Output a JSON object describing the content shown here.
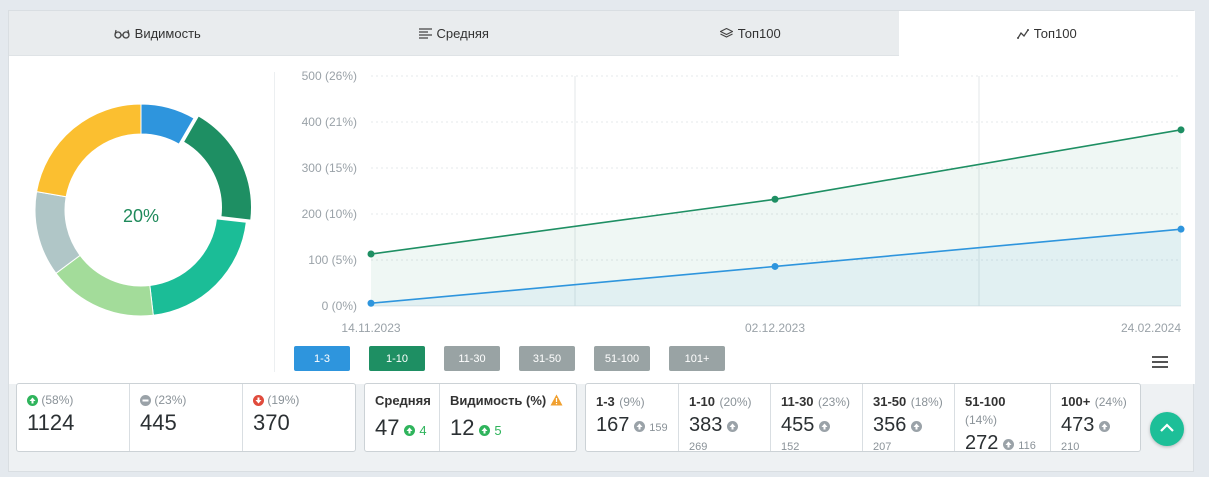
{
  "tabs": [
    {
      "label": "Видимость",
      "icon": "glasses-icon",
      "active": false
    },
    {
      "label": "Средняя",
      "icon": "lines-icon",
      "active": false
    },
    {
      "label": "Топ100",
      "icon": "layers-icon",
      "active": false
    },
    {
      "label": "Топ100",
      "icon": "chart-line-icon",
      "active": true
    }
  ],
  "donut": {
    "center_label": "20%",
    "segments": [
      {
        "name": "1-3",
        "value": 9,
        "color": "#2e95dd"
      },
      {
        "name": "1-10",
        "value": 20,
        "color": "#1e8f63"
      },
      {
        "name": "11-30",
        "value": 23,
        "color": "#1bbd97"
      },
      {
        "name": "31-50",
        "value": 18,
        "color": "#a3dc9a"
      },
      {
        "name": "51-100",
        "value": 14,
        "color": "#b0c6c7"
      },
      {
        "name": "100+",
        "value": 24,
        "color": "#fbbf30"
      }
    ],
    "highlighted": "1-10"
  },
  "chart_data": {
    "type": "area",
    "x": [
      "14.11.2023",
      "02.12.2023",
      "24.02.2024"
    ],
    "ytick_labels": [
      "0 (0%)",
      "100 (5%)",
      "200 (10%)",
      "300 (15%)",
      "400 (21%)",
      "500 (26%)"
    ],
    "ylim": [
      0,
      500
    ],
    "series": [
      {
        "name": "1-10",
        "values": [
          113,
          232,
          383
        ],
        "color": "#1e8f63"
      },
      {
        "name": "1-3",
        "values": [
          6,
          86,
          167
        ],
        "color": "#2e95dd"
      }
    ],
    "grid": true
  },
  "range_buttons": [
    {
      "label": "1-3",
      "color": "#2e95dd"
    },
    {
      "label": "1-10",
      "color": "#1e8f63"
    },
    {
      "label": "11-30",
      "color": "#99a3a4"
    },
    {
      "label": "31-50",
      "color": "#99a3a4"
    },
    {
      "label": "51-100",
      "color": "#99a3a4"
    },
    {
      "label": "101+",
      "color": "#99a3a4"
    }
  ],
  "movement": [
    {
      "pct": "(58%)",
      "value": "1124",
      "icon": "arrow-up-icon",
      "color": "#2fb45c"
    },
    {
      "pct": "(23%)",
      "value": "445",
      "icon": "minus-icon",
      "color": "#9aa2a8"
    },
    {
      "pct": "(19%)",
      "value": "370",
      "icon": "arrow-down-icon",
      "color": "#e04b3c"
    }
  ],
  "summary": {
    "avg_label": "Средняя",
    "avg_value": "47",
    "avg_delta": "4",
    "vis_label": "Видимость (%)",
    "vis_value": "12",
    "vis_delta": "5"
  },
  "ranges": [
    {
      "label": "1-3",
      "pct": "(9%)",
      "value": "167",
      "prev": "159"
    },
    {
      "label": "1-10",
      "pct": "(20%)",
      "value": "383",
      "prev": "269"
    },
    {
      "label": "11-30",
      "pct": "(23%)",
      "value": "455",
      "prev": "152"
    },
    {
      "label": "31-50",
      "pct": "(18%)",
      "value": "356",
      "prev": "207"
    },
    {
      "label": "51-100",
      "pct": "(14%)",
      "value": "272",
      "prev": "116"
    },
    {
      "label": "100+",
      "pct": "(24%)",
      "value": "473",
      "prev": "210"
    }
  ]
}
